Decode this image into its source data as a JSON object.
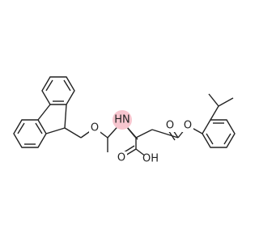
{
  "atoms": [
    {
      "label": "O"
    },
    {
      "label": "HN"
    },
    {
      "label": "O"
    },
    {
      "label": "OH"
    },
    {
      "label": "O"
    },
    {
      "label": "O"
    }
  ]
}
